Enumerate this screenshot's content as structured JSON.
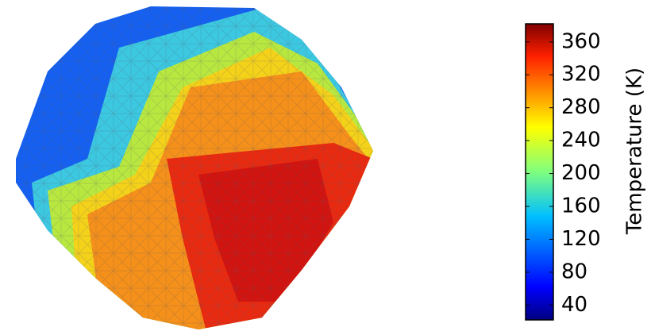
{
  "chart_data": {
    "type": "surface",
    "colorbar": {
      "label": "Temperature (K)",
      "colormap": "jet",
      "lim": [
        22,
        382
      ],
      "ticks": [
        40,
        80,
        120,
        160,
        200,
        240,
        280,
        320,
        360
      ]
    }
  }
}
